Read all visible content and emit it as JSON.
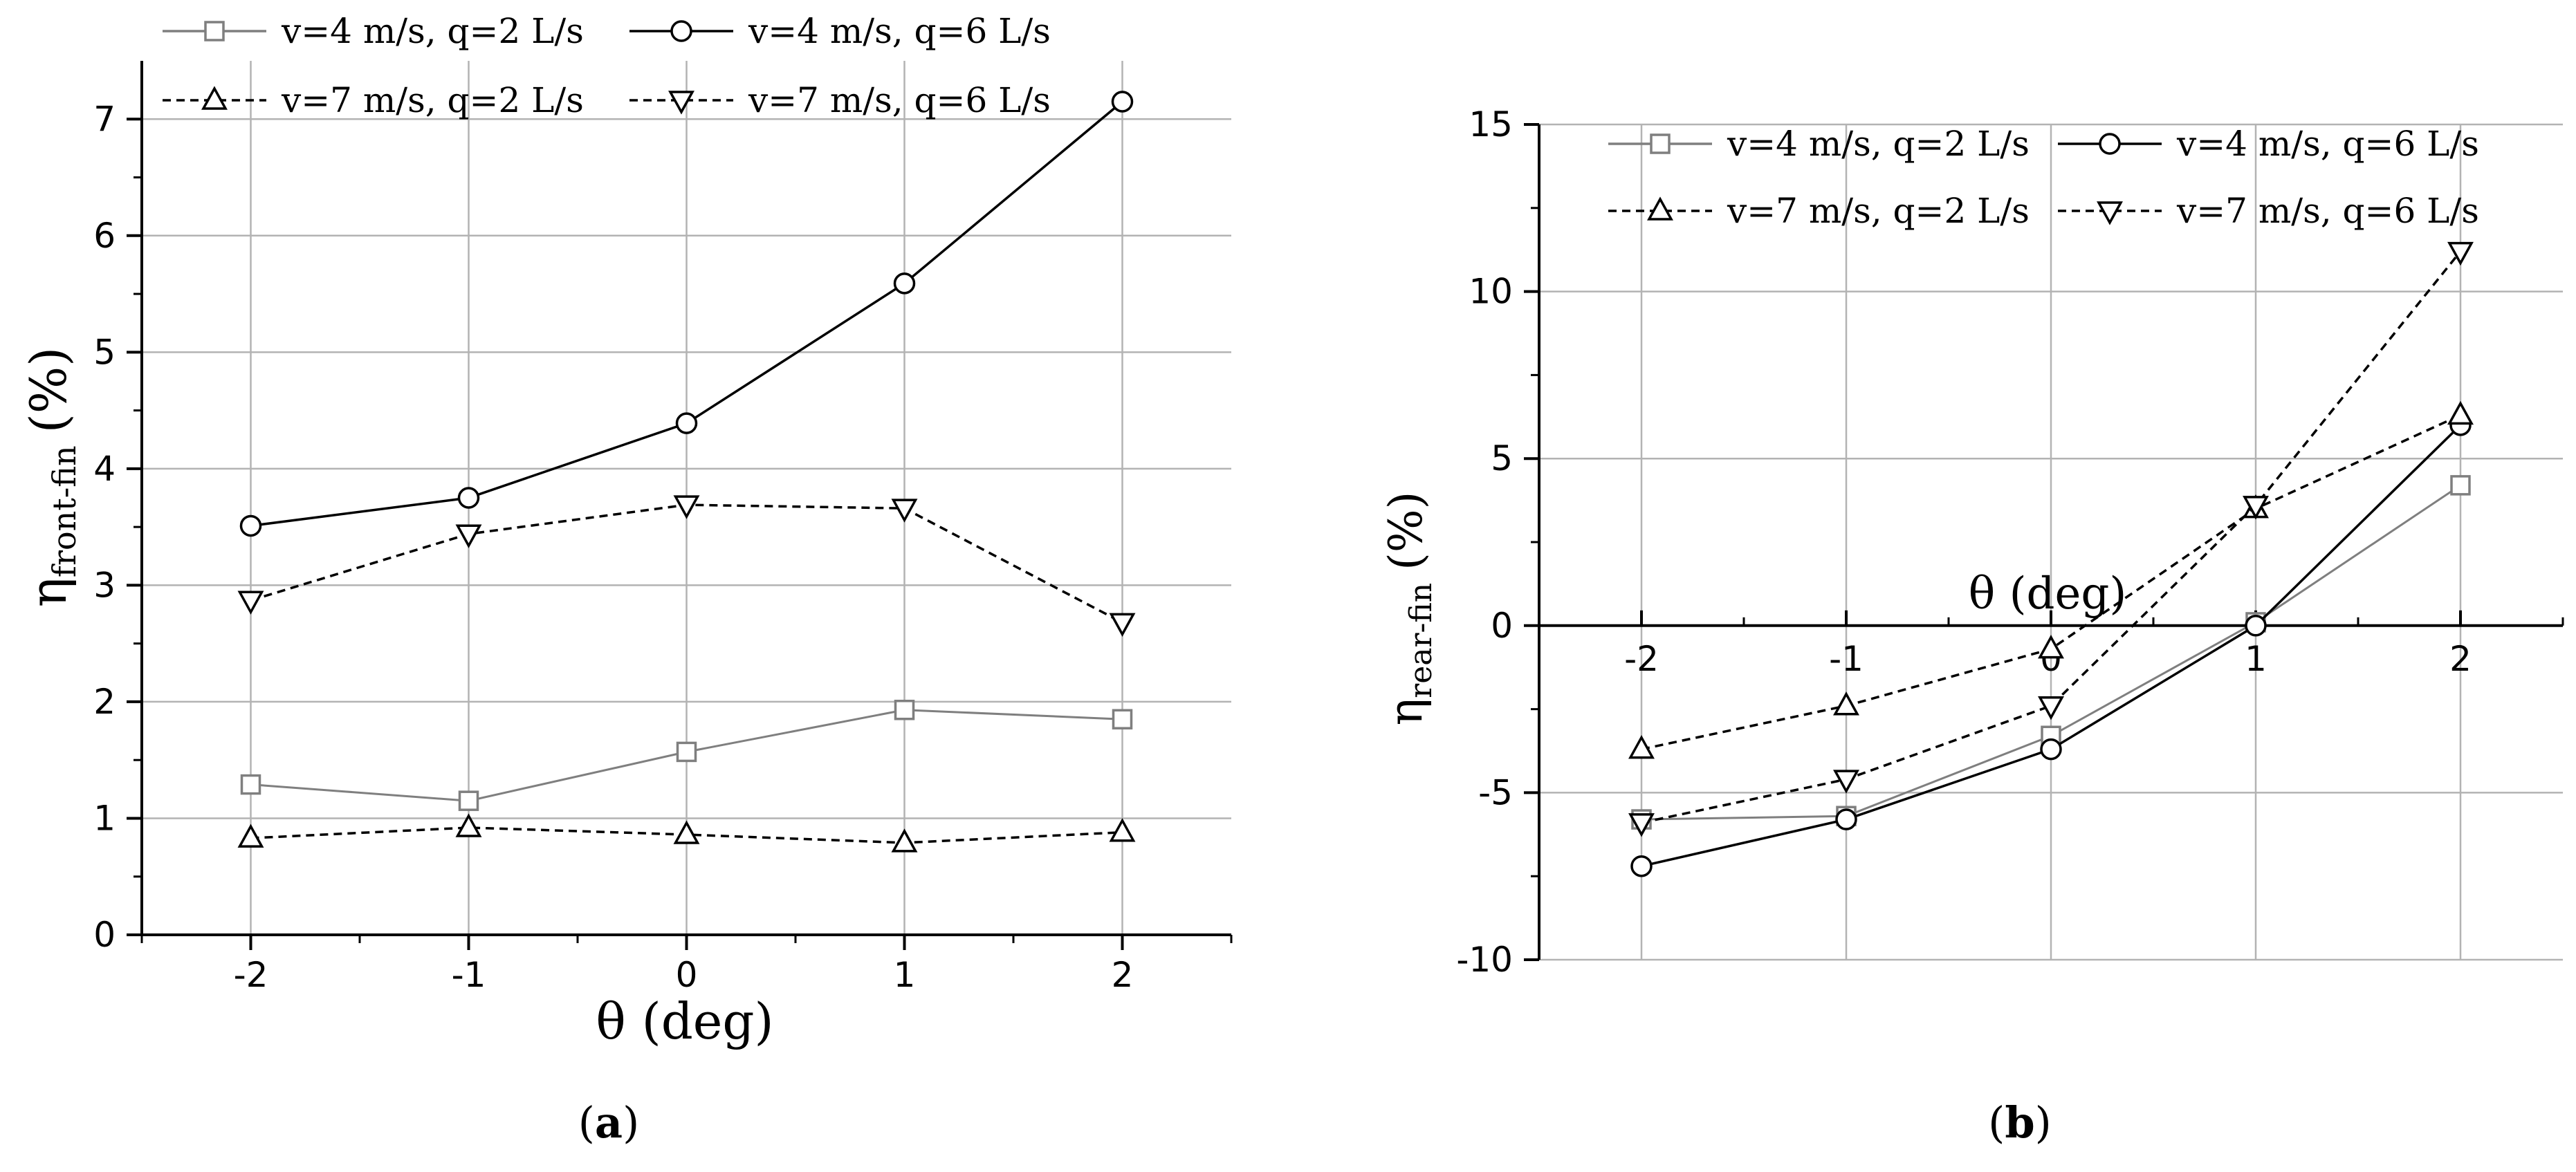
{
  "chart_data": [
    {
      "type": "line",
      "panel_label": "a",
      "xlabel": "θ (deg)",
      "ylabel_symbol": "η",
      "ylabel_subscript": "front-fin",
      "ylabel_unit": "(%)",
      "xlim": [
        -2.5,
        2.5
      ],
      "ylim": [
        0,
        7.5
      ],
      "x_ticks": [
        -2,
        -1,
        0,
        1,
        2
      ],
      "x_tick_labels": [
        "-2",
        "-1",
        "0",
        "1",
        "2"
      ],
      "y_ticks": [
        0,
        1,
        2,
        3,
        4,
        5,
        6,
        7
      ],
      "y_tick_labels": [
        "0",
        "1",
        "2",
        "3",
        "4",
        "5",
        "6",
        "7"
      ],
      "grid": true,
      "legend_position": "top",
      "x": [
        -2,
        -1,
        0,
        1,
        2
      ],
      "series": [
        {
          "name": "v=4 m/s, q=2 L/s",
          "marker": "square",
          "line": "solid",
          "color": "#7f7f7f",
          "values": [
            1.29,
            1.15,
            1.57,
            1.93,
            1.85
          ]
        },
        {
          "name": "v=4 m/s, q=6 L/s",
          "marker": "circle",
          "line": "solid",
          "color": "#000000",
          "values": [
            3.51,
            3.75,
            4.39,
            5.59,
            7.15
          ]
        },
        {
          "name": "v=7 m/s, q=2 L/s",
          "marker": "triangle-up",
          "line": "dashed",
          "color": "#000000",
          "values": [
            0.83,
            0.92,
            0.86,
            0.79,
            0.88
          ]
        },
        {
          "name": "v=7 m/s, q=6 L/s",
          "marker": "triangle-down",
          "line": "dashed",
          "color": "#000000",
          "values": [
            2.87,
            3.44,
            3.69,
            3.66,
            2.68
          ]
        }
      ]
    },
    {
      "type": "line",
      "panel_label": "b",
      "xlabel": "θ (deg)",
      "ylabel_symbol": "η",
      "ylabel_subscript": "rear-fin",
      "ylabel_unit": "(%)",
      "xlim": [
        -2.5,
        2.5
      ],
      "ylim": [
        -10,
        15
      ],
      "x_ticks": [
        -2,
        -1,
        0,
        1,
        2
      ],
      "x_tick_labels": [
        "-2",
        "-1",
        "0",
        "1",
        "2"
      ],
      "y_ticks": [
        -10,
        -5,
        0,
        5,
        10,
        15
      ],
      "y_tick_labels": [
        "-10",
        "-5",
        "0",
        "5",
        "10",
        "15"
      ],
      "grid": true,
      "legend_position": "top",
      "x": [
        -2,
        -1,
        0,
        1,
        2
      ],
      "series": [
        {
          "name": "v=4 m/s, q=2 L/s",
          "marker": "square",
          "line": "solid",
          "color": "#7f7f7f",
          "values": [
            -5.8,
            -5.7,
            -3.3,
            0.1,
            4.2
          ]
        },
        {
          "name": "v=4 m/s, q=6 L/s",
          "marker": "circle",
          "line": "solid",
          "color": "#000000",
          "values": [
            -7.2,
            -5.8,
            -3.7,
            0.0,
            6.0
          ]
        },
        {
          "name": "v=7 m/s, q=2 L/s",
          "marker": "triangle-up",
          "line": "dashed",
          "color": "#000000",
          "values": [
            -3.7,
            -2.4,
            -0.7,
            3.5,
            6.3
          ]
        },
        {
          "name": "v=7 m/s, q=6 L/s",
          "marker": "triangle-down",
          "line": "dashed",
          "color": "#000000",
          "values": [
            -5.9,
            -4.6,
            -2.4,
            3.6,
            11.2
          ]
        }
      ]
    }
  ]
}
